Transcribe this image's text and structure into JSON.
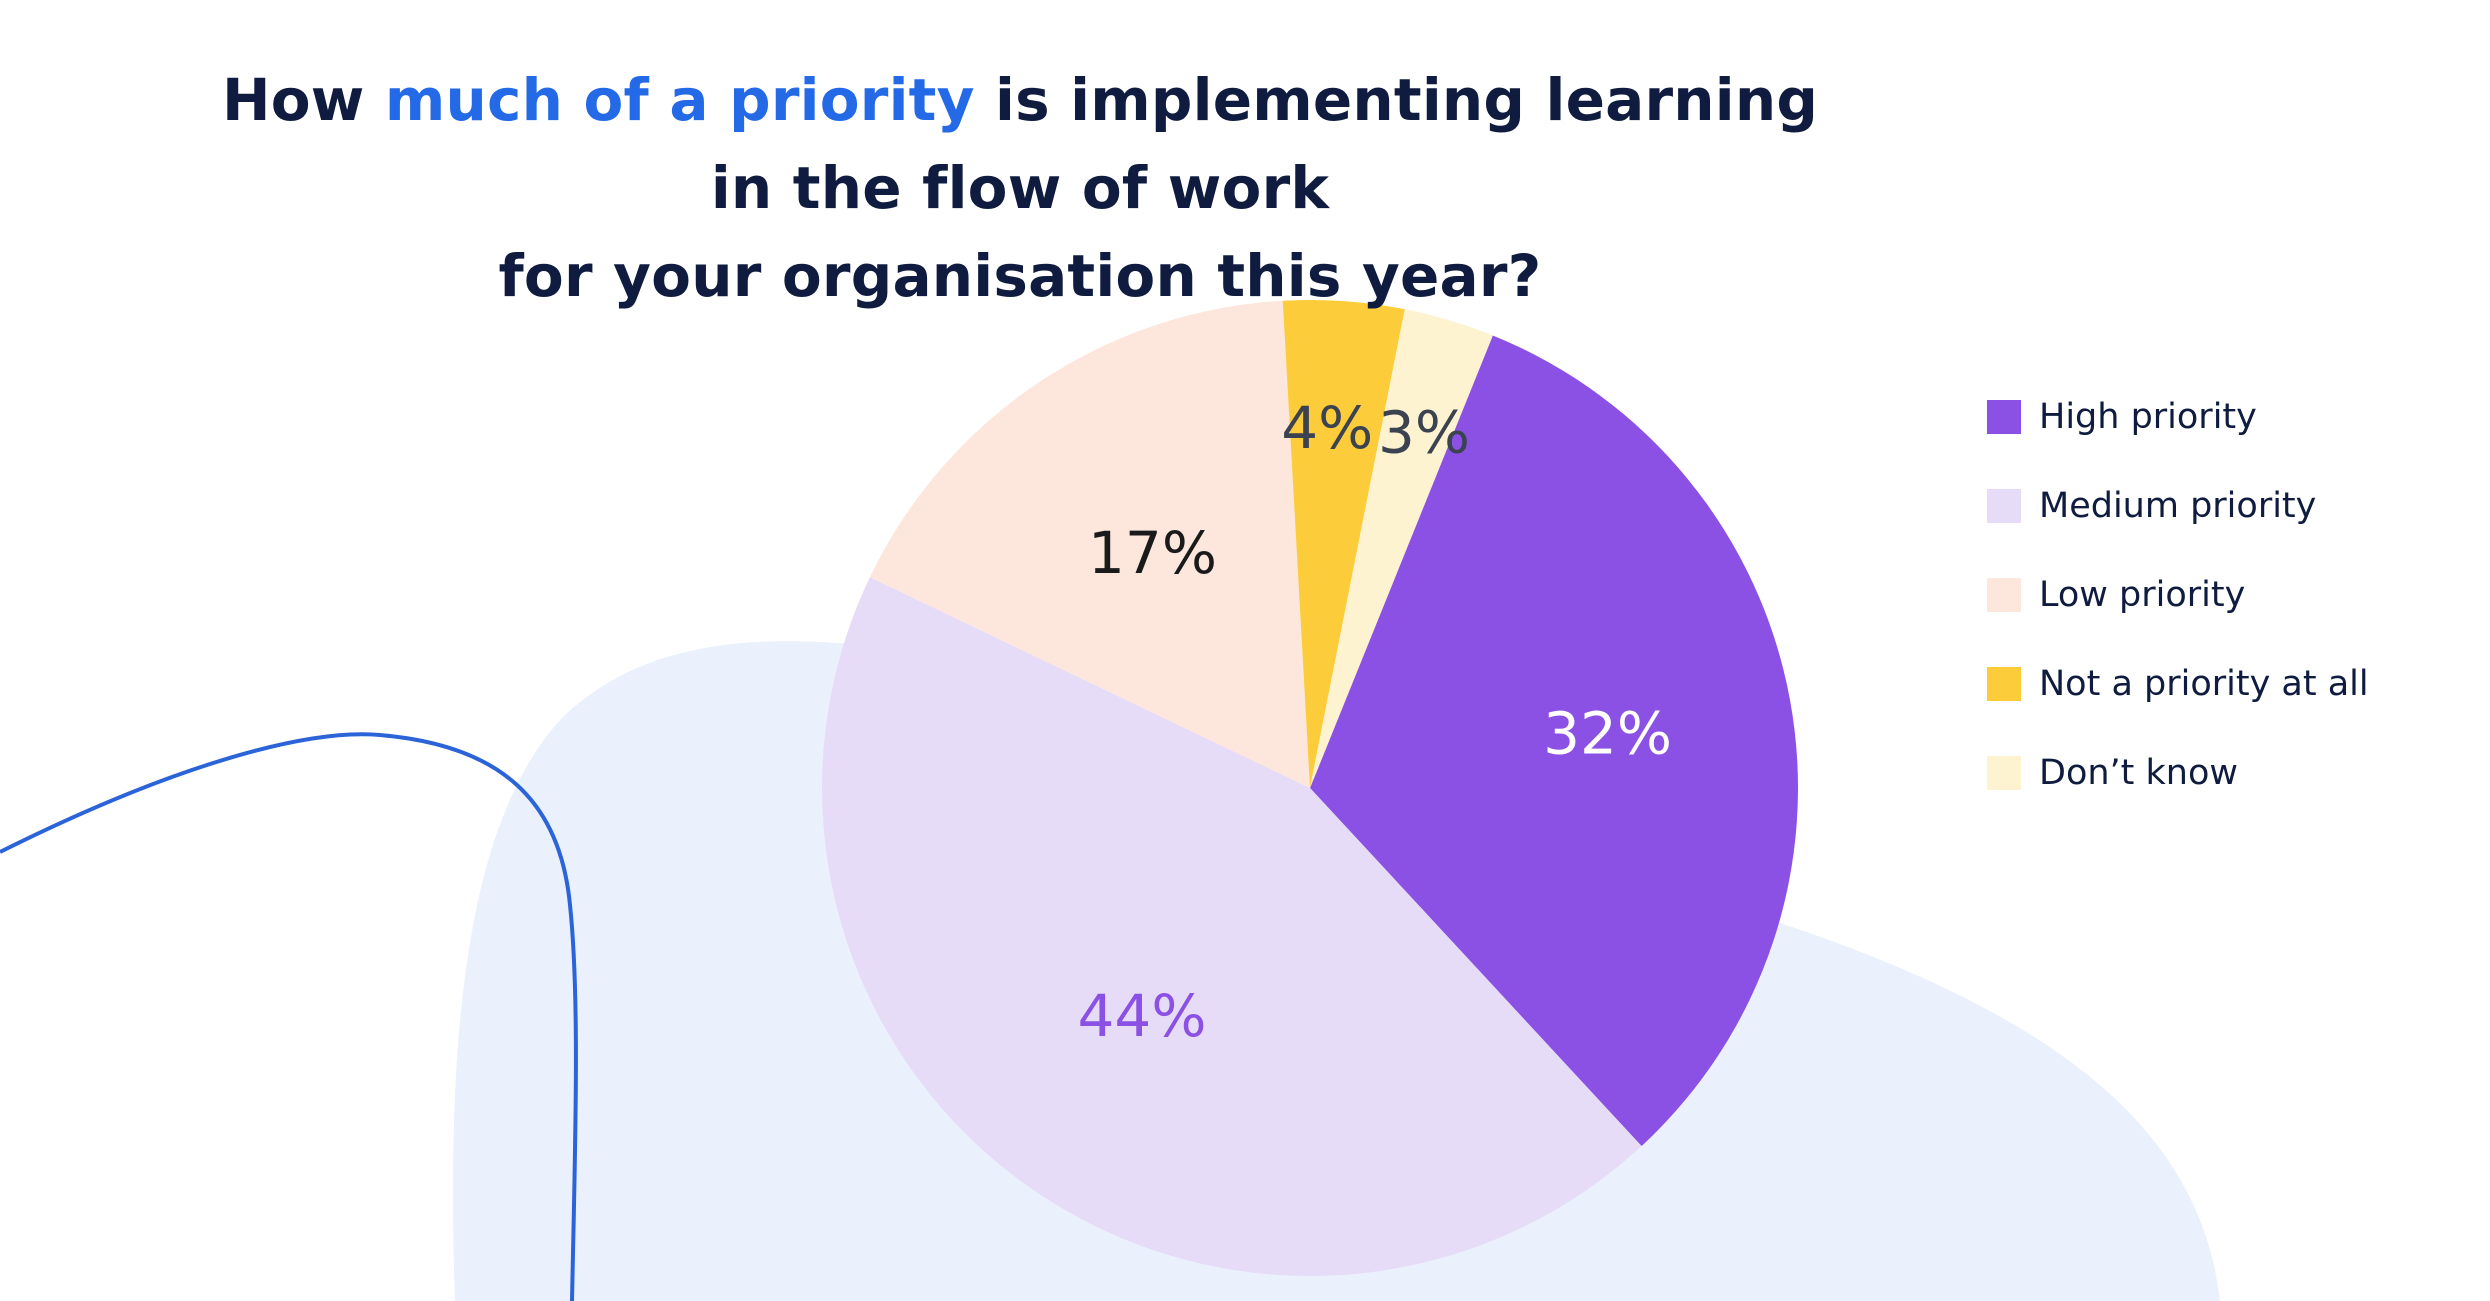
{
  "chart_data": {
    "type": "pie",
    "title": {
      "prefix": "How ",
      "highlight": "much of a priority",
      "line1_suffix": " is implementing learning in the flow of work",
      "line2": "for your organisation this year?"
    },
    "slices": [
      {
        "label": "High priority",
        "value": 32,
        "display": "32%",
        "color": "#8b51e5",
        "label_color": "#ffffff"
      },
      {
        "label": "Medium priority",
        "value": 44,
        "display": "44%",
        "color": "#e6dcf7",
        "label_color": "#8b51e5"
      },
      {
        "label": "Low priority",
        "value": 17,
        "display": "17%",
        "color": "#fde7dd",
        "label_color": "#1a1a1a"
      },
      {
        "label": "Not a priority at all",
        "value": 4,
        "display": "4%",
        "color": "#fccc3b",
        "label_color": "#3b4250"
      },
      {
        "label": "Don’t know",
        "value": 3,
        "display": "3%",
        "color": "#fef3d0",
        "label_color": "#3b4250"
      }
    ],
    "legend_position": "right",
    "start_angle_deg": 22
  },
  "decor": {
    "blob_color": "#eaf1fc",
    "curve_color": "#2b63d8"
  }
}
